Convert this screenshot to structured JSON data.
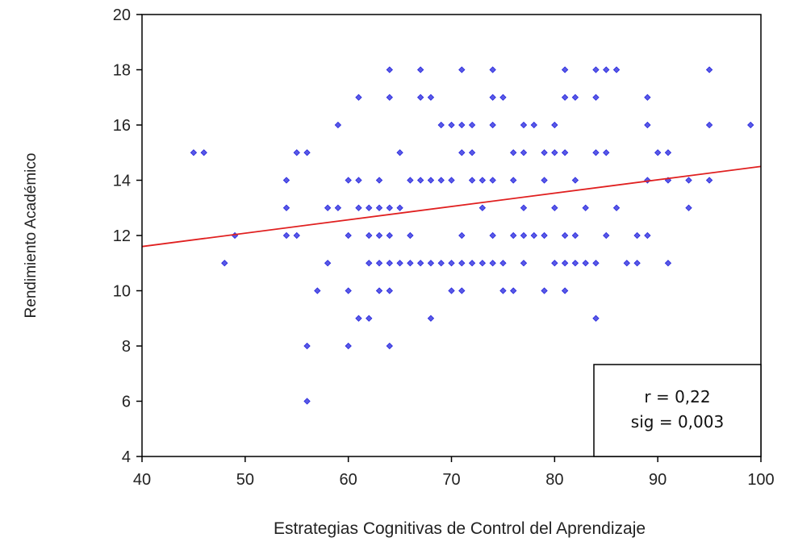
{
  "chart_data": {
    "type": "scatter",
    "title": "",
    "xlabel": "Estrategias Cognitivas de Control del Aprendizaje",
    "ylabel": "Rendimiento Académico",
    "xlim": [
      40,
      100
    ],
    "ylim": [
      4,
      20
    ],
    "xticks": [
      "40",
      "50",
      "60",
      "70",
      "80",
      "90",
      "100"
    ],
    "yticks": [
      "4",
      "6",
      "8",
      "10",
      "12",
      "14",
      "16",
      "18",
      "20"
    ],
    "grid": false,
    "marker_color": "#2222dd",
    "fit_line": {
      "color": "#e02020",
      "points": [
        [
          40,
          11.6
        ],
        [
          100,
          14.5
        ]
      ]
    },
    "annotation": {
      "lines": [
        "r = 0,22",
        "sig = 0,003"
      ],
      "position": "bottom-right"
    },
    "points": [
      [
        45,
        15
      ],
      [
        46,
        15
      ],
      [
        48,
        11
      ],
      [
        49,
        12
      ],
      [
        54,
        14
      ],
      [
        54,
        13
      ],
      [
        54,
        12
      ],
      [
        55,
        12
      ],
      [
        55,
        15
      ],
      [
        56,
        15
      ],
      [
        56,
        8
      ],
      [
        56,
        6
      ],
      [
        57,
        10
      ],
      [
        58,
        11
      ],
      [
        58,
        13
      ],
      [
        59,
        13
      ],
      [
        59,
        16
      ],
      [
        60,
        14
      ],
      [
        60,
        12
      ],
      [
        60,
        10
      ],
      [
        60,
        8
      ],
      [
        61,
        14
      ],
      [
        61,
        17
      ],
      [
        61,
        13
      ],
      [
        61,
        9
      ],
      [
        62,
        13
      ],
      [
        62,
        12
      ],
      [
        62,
        11
      ],
      [
        62,
        9
      ],
      [
        63,
        13
      ],
      [
        63,
        14
      ],
      [
        63,
        12
      ],
      [
        63,
        11
      ],
      [
        63,
        10
      ],
      [
        64,
        18
      ],
      [
        64,
        17
      ],
      [
        64,
        13
      ],
      [
        64,
        12
      ],
      [
        64,
        11
      ],
      [
        64,
        10
      ],
      [
        64,
        8
      ],
      [
        65,
        15
      ],
      [
        65,
        13
      ],
      [
        65,
        11
      ],
      [
        66,
        14
      ],
      [
        66,
        12
      ],
      [
        66,
        11
      ],
      [
        67,
        18
      ],
      [
        67,
        17
      ],
      [
        67,
        14
      ],
      [
        67,
        11
      ],
      [
        68,
        17
      ],
      [
        68,
        14
      ],
      [
        68,
        11
      ],
      [
        68,
        9
      ],
      [
        69,
        14
      ],
      [
        69,
        11
      ],
      [
        69,
        16
      ],
      [
        70,
        16
      ],
      [
        70,
        14
      ],
      [
        70,
        11
      ],
      [
        70,
        10
      ],
      [
        71,
        18
      ],
      [
        71,
        16
      ],
      [
        71,
        15
      ],
      [
        71,
        12
      ],
      [
        71,
        11
      ],
      [
        71,
        10
      ],
      [
        72,
        16
      ],
      [
        72,
        15
      ],
      [
        72,
        14
      ],
      [
        72,
        11
      ],
      [
        73,
        14
      ],
      [
        73,
        13
      ],
      [
        73,
        11
      ],
      [
        74,
        18
      ],
      [
        74,
        17
      ],
      [
        74,
        16
      ],
      [
        74,
        14
      ],
      [
        74,
        12
      ],
      [
        74,
        11
      ],
      [
        75,
        17
      ],
      [
        75,
        11
      ],
      [
        75,
        10
      ],
      [
        76,
        15
      ],
      [
        76,
        14
      ],
      [
        76,
        12
      ],
      [
        76,
        10
      ],
      [
        77,
        16
      ],
      [
        77,
        15
      ],
      [
        77,
        13
      ],
      [
        77,
        12
      ],
      [
        77,
        11
      ],
      [
        78,
        16
      ],
      [
        78,
        12
      ],
      [
        79,
        15
      ],
      [
        79,
        14
      ],
      [
        79,
        12
      ],
      [
        79,
        10
      ],
      [
        80,
        16
      ],
      [
        80,
        15
      ],
      [
        80,
        13
      ],
      [
        80,
        11
      ],
      [
        81,
        18
      ],
      [
        81,
        17
      ],
      [
        81,
        15
      ],
      [
        81,
        12
      ],
      [
        81,
        11
      ],
      [
        81,
        10
      ],
      [
        82,
        17
      ],
      [
        82,
        14
      ],
      [
        82,
        12
      ],
      [
        82,
        11
      ],
      [
        83,
        13
      ],
      [
        83,
        11
      ],
      [
        84,
        18
      ],
      [
        84,
        17
      ],
      [
        84,
        15
      ],
      [
        84,
        11
      ],
      [
        84,
        9
      ],
      [
        85,
        18
      ],
      [
        85,
        15
      ],
      [
        85,
        12
      ],
      [
        86,
        18
      ],
      [
        86,
        13
      ],
      [
        87,
        11
      ],
      [
        88,
        12
      ],
      [
        88,
        11
      ],
      [
        89,
        17
      ],
      [
        89,
        16
      ],
      [
        89,
        14
      ],
      [
        89,
        12
      ],
      [
        90,
        15
      ],
      [
        91,
        15
      ],
      [
        91,
        14
      ],
      [
        91,
        11
      ],
      [
        93,
        14
      ],
      [
        93,
        13
      ],
      [
        95,
        18
      ],
      [
        95,
        16
      ],
      [
        95,
        14
      ],
      [
        99,
        16
      ]
    ]
  }
}
